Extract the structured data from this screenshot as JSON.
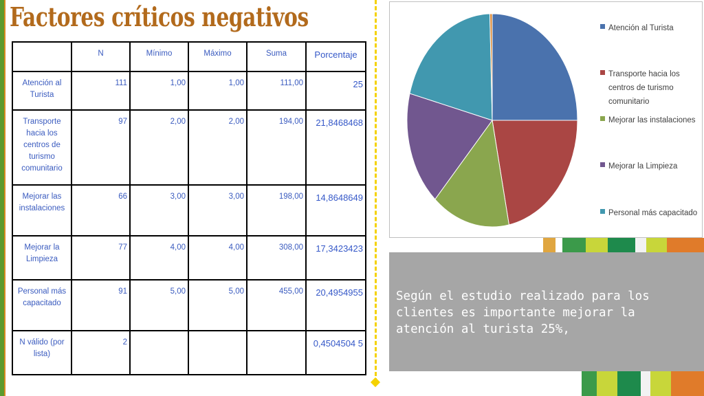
{
  "title": "Factores críticos negativos",
  "table": {
    "headers": [
      "",
      "N",
      "Mínimo",
      "Máximo",
      "Suma",
      "Porcentaje"
    ],
    "rows": [
      {
        "label": "Atención al Turista",
        "n": "111",
        "min": "1,00",
        "max": "1,00",
        "sum": "111,00",
        "pct": "25"
      },
      {
        "label": "Transporte hacia los centros de turismo comunitario",
        "n": "97",
        "min": "2,00",
        "max": "2,00",
        "sum": "194,00",
        "pct": "21,8468468"
      },
      {
        "label": "Mejorar las instalaciones",
        "n": "66",
        "min": "3,00",
        "max": "3,00",
        "sum": "198,00",
        "pct": "14,8648649"
      },
      {
        "label": "Mejorar la Limpieza",
        "n": "77",
        "min": "4,00",
        "max": "4,00",
        "sum": "308,00",
        "pct": "17,3423423"
      },
      {
        "label": "Personal más capacitado",
        "n": "91",
        "min": "5,00",
        "max": "5,00",
        "sum": "455,00",
        "pct": "20,4954955"
      },
      {
        "label": "N válido (por lista)",
        "n": "2",
        "min": "",
        "max": "",
        "sum": "",
        "pct": "0,4504504 5"
      }
    ]
  },
  "chart_data": {
    "type": "pie",
    "categories": [
      "Atención al Turista",
      "Transporte hacia los centros de turismo comunitario",
      "Mejorar las instalaciones",
      "Mejorar la Limpieza",
      "Personal más capacitado",
      "N válido (por lista)"
    ],
    "values": [
      25,
      21.8468468,
      14.8648649,
      17.3423423,
      20.4954955,
      0.45045045
    ],
    "colors": [
      "#4a72ad",
      "#aa4644",
      "#8aa64e",
      "#71578f",
      "#4198af",
      "#da8936"
    ],
    "legend": {
      "placement": "right",
      "entries": [
        {
          "label": "Atención al Turista",
          "color": "#4a72ad"
        },
        {
          "label": "Transporte hacia los centros de turismo comunitario",
          "color": "#aa4644"
        },
        {
          "label": "Mejorar las instalaciones",
          "color": "#8aa64e"
        },
        {
          "label": "Mejorar la Limpieza",
          "color": "#71578f"
        },
        {
          "label": "Personal más capacitado",
          "color": "#4198af"
        }
      ]
    }
  },
  "summary": "Según el estudio realizado para los clientes es importante mejorar la atención al turista 25%,",
  "colors": {
    "title": "#b26a1c",
    "table_text": "#3a5bbf",
    "text_box": "#a6a6a6",
    "accent_dashed": "#f5d200",
    "left_bar": "#5c9a2e"
  }
}
